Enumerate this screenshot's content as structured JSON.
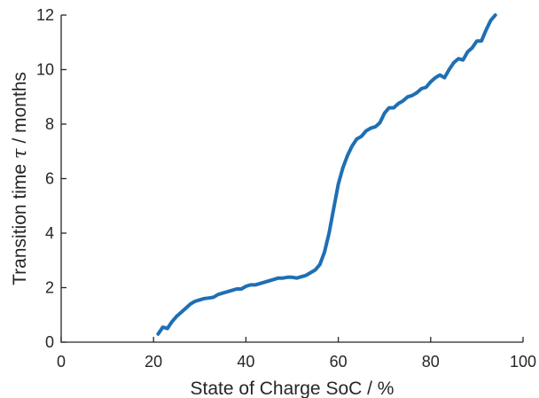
{
  "chart_data": {
    "type": "line",
    "xlabel": "State of Charge SoC  /  %",
    "ylabel_prefix": "Transition time ",
    "ylabel_symbol": "τ",
    "ylabel_suffix": "  /  months",
    "xlim": [
      0,
      100
    ],
    "ylim": [
      0,
      12
    ],
    "xticks": [
      0,
      20,
      40,
      60,
      80,
      100
    ],
    "yticks": [
      0,
      2,
      4,
      6,
      8,
      10,
      12
    ],
    "grid": false,
    "legend": false,
    "series": [
      {
        "color": "#1f6fb4",
        "x": [
          21,
          22,
          23,
          24,
          25,
          26,
          27,
          28,
          29,
          30,
          31,
          32,
          33,
          34,
          35,
          36,
          37,
          38,
          39,
          40,
          41,
          42,
          43,
          44,
          45,
          46,
          47,
          48,
          49,
          50,
          51,
          52,
          53,
          54,
          55,
          56,
          57,
          58,
          59,
          60,
          61,
          62,
          63,
          64,
          65,
          66,
          67,
          68,
          69,
          70,
          71,
          72,
          73,
          74,
          75,
          76,
          77,
          78,
          79,
          80,
          81,
          82,
          83,
          84,
          85,
          86,
          87,
          88,
          89,
          90,
          91,
          92,
          93,
          94
        ],
        "y": [
          0.3,
          0.55,
          0.5,
          0.75,
          0.95,
          1.1,
          1.25,
          1.4,
          1.5,
          1.55,
          1.6,
          1.62,
          1.65,
          1.75,
          1.8,
          1.85,
          1.9,
          1.95,
          1.95,
          2.05,
          2.1,
          2.1,
          2.15,
          2.2,
          2.25,
          2.3,
          2.35,
          2.35,
          2.38,
          2.38,
          2.35,
          2.4,
          2.45,
          2.55,
          2.65,
          2.85,
          3.3,
          4.0,
          4.9,
          5.8,
          6.4,
          6.85,
          7.2,
          7.45,
          7.55,
          7.75,
          7.85,
          7.9,
          8.05,
          8.4,
          8.6,
          8.6,
          8.75,
          8.85,
          9.0,
          9.05,
          9.15,
          9.3,
          9.35,
          9.55,
          9.7,
          9.8,
          9.7,
          10.0,
          10.25,
          10.4,
          10.35,
          10.65,
          10.8,
          11.05,
          11.05,
          11.45,
          11.8,
          12.0
        ]
      }
    ]
  }
}
